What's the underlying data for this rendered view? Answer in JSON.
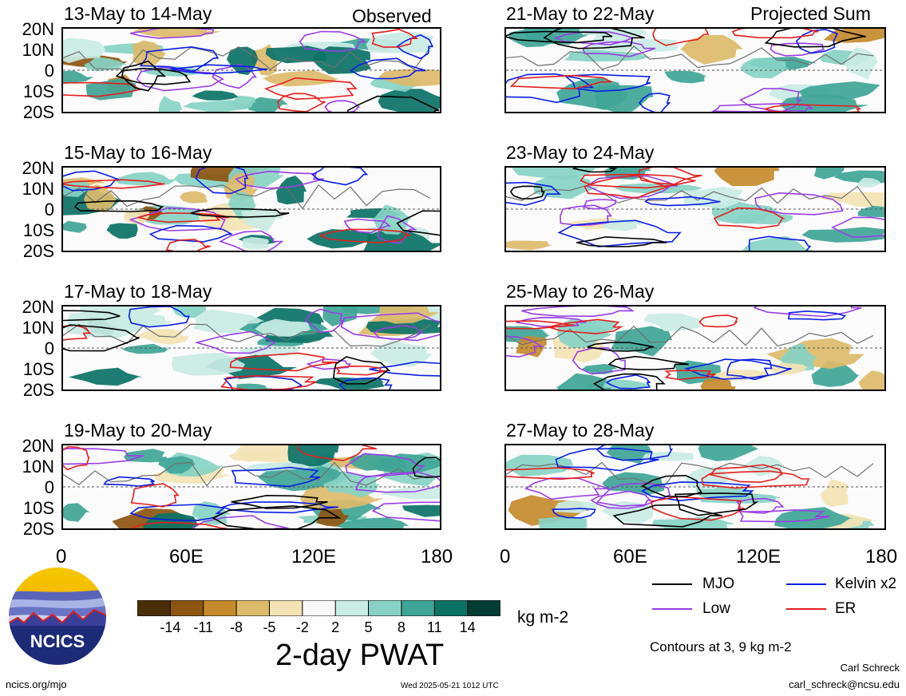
{
  "panels": [
    {
      "title": "13-May to 14-May",
      "tag": "Observed"
    },
    {
      "title": "15-May to 16-May",
      "tag": ""
    },
    {
      "title": "17-May to 18-May",
      "tag": ""
    },
    {
      "title": "19-May to 20-May",
      "tag": ""
    },
    {
      "title": "21-May to 22-May",
      "tag": "Projected Sum"
    },
    {
      "title": "23-May to 24-May",
      "tag": ""
    },
    {
      "title": "25-May to 26-May",
      "tag": ""
    },
    {
      "title": "27-May to 28-May",
      "tag": ""
    }
  ],
  "lat_labels": [
    "20N",
    "10N",
    "0",
    "10S",
    "20S"
  ],
  "lon_labels": [
    "0",
    "60E",
    "120E",
    "180"
  ],
  "colorbar": {
    "ticks": [
      "-14",
      "-11",
      "-8",
      "-5",
      "-2",
      "2",
      "5",
      "8",
      "11",
      "14"
    ],
    "colors": [
      "#4a2e08",
      "#8c5510",
      "#c58a2c",
      "#dcbb6a",
      "#f3e3b4",
      "#f8f8f8",
      "#c9ece4",
      "#87d2c4",
      "#3fa597",
      "#0b7266",
      "#033c33"
    ],
    "units": "kg m-2",
    "title": "2-day PWAT"
  },
  "legend": {
    "mjo": {
      "label": "MJO",
      "color": "#000000"
    },
    "kelvin": {
      "label": "Kelvin x2",
      "color": "#0a1ee6"
    },
    "low": {
      "label": "Low",
      "color": "#9a3ee6"
    },
    "er": {
      "label": "ER",
      "color": "#e61e1e"
    },
    "contours_note": "Contours at 3, 9 kg m-2"
  },
  "logo": {
    "text": "NCICS"
  },
  "footer": {
    "left": "ncics.org/mjo",
    "center": "Wed 2025-05-21 1012 UTC",
    "author": "Carl Schreck",
    "email": "carl_schreck@ncsu.edu"
  }
}
